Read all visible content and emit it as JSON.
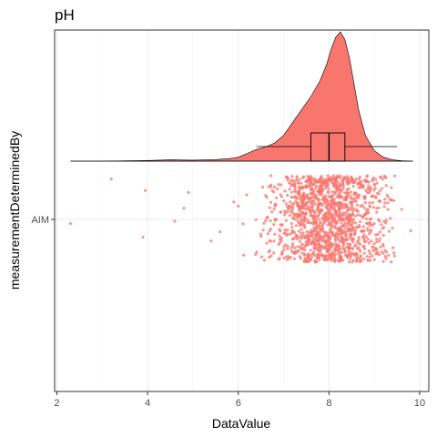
{
  "chart_data": {
    "type": "scatter",
    "subtype": "raincloud (half-violin density + boxplot + jittered points)",
    "title": "pH",
    "xlabel": "DataValue",
    "ylabel": "measurementDeterminedBy",
    "xlim": [
      1.95,
      10.2
    ],
    "x_ticks": [
      2,
      4,
      6,
      8,
      10
    ],
    "y_categories": [
      "AIM"
    ],
    "grid": true,
    "legend": "none",
    "color": "#F8766D",
    "density": {
      "x": [
        2.3,
        3.0,
        4.0,
        4.5,
        5.0,
        5.5,
        5.8,
        6.0,
        6.2,
        6.4,
        6.6,
        6.8,
        7.0,
        7.2,
        7.4,
        7.6,
        7.8,
        7.95,
        8.05,
        8.15,
        8.25,
        8.35,
        8.45,
        8.55,
        8.65,
        8.8,
        9.0,
        9.2,
        9.4,
        9.6,
        9.85
      ],
      "y": [
        0.0,
        0.0,
        0.005,
        0.01,
        0.008,
        0.012,
        0.02,
        0.03,
        0.06,
        0.09,
        0.11,
        0.14,
        0.2,
        0.3,
        0.4,
        0.5,
        0.62,
        0.75,
        0.87,
        0.96,
        1.0,
        0.94,
        0.8,
        0.6,
        0.4,
        0.2,
        0.08,
        0.03,
        0.01,
        0.003,
        0.0
      ]
    },
    "boxplot": {
      "whisker_low": 6.4,
      "q1": 7.6,
      "median": 8.0,
      "q3": 8.35,
      "whisker_high": 9.5
    },
    "outliers": [
      2.3,
      3.2,
      3.9,
      3.95,
      4.6,
      4.8,
      4.9,
      5.4,
      5.6,
      5.9,
      6.0,
      9.6,
      9.8
    ]
  }
}
